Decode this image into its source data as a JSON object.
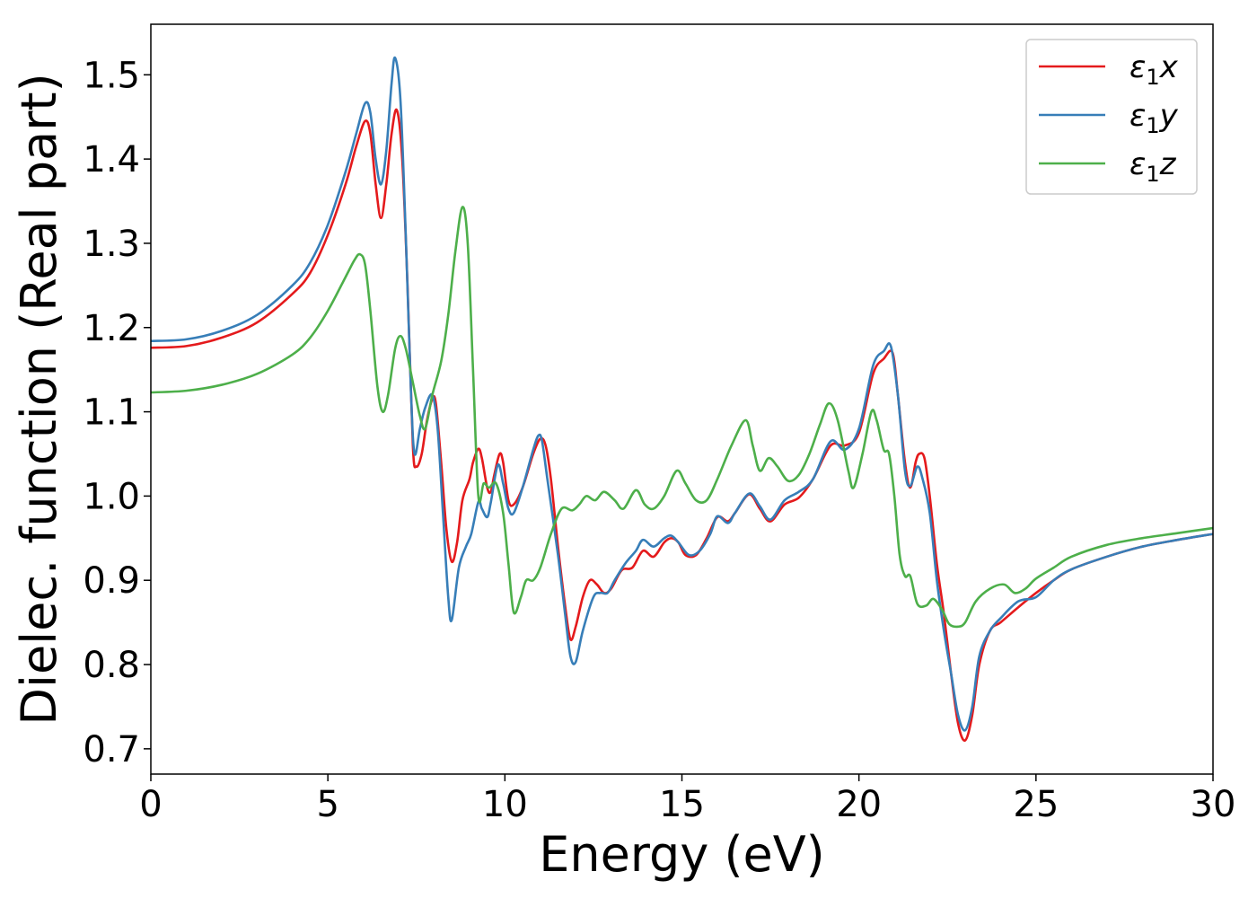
{
  "chart_data": {
    "type": "line",
    "xlabel": "Energy (eV)",
    "ylabel": "Dielec. function (Real part)",
    "xlim": [
      0,
      30
    ],
    "ylim": [
      0.67,
      1.56
    ],
    "xticks": [
      "0",
      "5",
      "10",
      "15",
      "20",
      "25",
      "30"
    ],
    "yticks": [
      "0.7",
      "0.8",
      "0.9",
      "1.0",
      "1.1",
      "1.2",
      "1.3",
      "1.4",
      "1.5"
    ],
    "grid": false,
    "legend_position": "top-right",
    "series": [
      {
        "name": "ε₁x",
        "legend_base": "ε",
        "legend_sub": "1",
        "legend_var": "x",
        "color": "#e41a1c",
        "points": [
          [
            0,
            1.176
          ],
          [
            1,
            1.178
          ],
          [
            2,
            1.188
          ],
          [
            3,
            1.206
          ],
          [
            4,
            1.24
          ],
          [
            4.5,
            1.265
          ],
          [
            5,
            1.31
          ],
          [
            5.5,
            1.37
          ],
          [
            5.8,
            1.415
          ],
          [
            6.05,
            1.445
          ],
          [
            6.2,
            1.43
          ],
          [
            6.35,
            1.37
          ],
          [
            6.5,
            1.33
          ],
          [
            6.65,
            1.37
          ],
          [
            6.8,
            1.43
          ],
          [
            6.95,
            1.458
          ],
          [
            7.1,
            1.4
          ],
          [
            7.25,
            1.25
          ],
          [
            7.4,
            1.06
          ],
          [
            7.5,
            1.035
          ],
          [
            7.65,
            1.05
          ],
          [
            7.8,
            1.09
          ],
          [
            7.95,
            1.115
          ],
          [
            8.05,
            1.11
          ],
          [
            8.2,
            1.04
          ],
          [
            8.35,
            0.96
          ],
          [
            8.5,
            0.922
          ],
          [
            8.65,
            0.945
          ],
          [
            8.8,
            0.995
          ],
          [
            9.0,
            1.02
          ],
          [
            9.1,
            1.04
          ],
          [
            9.25,
            1.056
          ],
          [
            9.35,
            1.045
          ],
          [
            9.5,
            1.01
          ],
          [
            9.6,
            1.005
          ],
          [
            9.7,
            1.025
          ],
          [
            9.85,
            1.05
          ],
          [
            9.95,
            1.04
          ],
          [
            10.1,
            0.995
          ],
          [
            10.25,
            0.99
          ],
          [
            10.5,
            1.01
          ],
          [
            10.8,
            1.05
          ],
          [
            11.0,
            1.068
          ],
          [
            11.15,
            1.06
          ],
          [
            11.3,
            1.02
          ],
          [
            11.5,
            0.94
          ],
          [
            11.7,
            0.87
          ],
          [
            11.85,
            0.83
          ],
          [
            12.0,
            0.845
          ],
          [
            12.2,
            0.88
          ],
          [
            12.4,
            0.9
          ],
          [
            12.6,
            0.895
          ],
          [
            12.8,
            0.885
          ],
          [
            13.0,
            0.89
          ],
          [
            13.3,
            0.912
          ],
          [
            13.6,
            0.915
          ],
          [
            13.9,
            0.935
          ],
          [
            14.2,
            0.928
          ],
          [
            14.5,
            0.945
          ],
          [
            14.7,
            0.95
          ],
          [
            14.9,
            0.945
          ],
          [
            15.1,
            0.93
          ],
          [
            15.4,
            0.93
          ],
          [
            15.7,
            0.95
          ],
          [
            16.0,
            0.975
          ],
          [
            16.3,
            0.97
          ],
          [
            16.5,
            0.98
          ],
          [
            16.9,
            1.002
          ],
          [
            17.2,
            0.985
          ],
          [
            17.5,
            0.97
          ],
          [
            17.9,
            0.99
          ],
          [
            18.3,
            0.998
          ],
          [
            18.7,
            1.02
          ],
          [
            19.2,
            1.06
          ],
          [
            19.6,
            1.06
          ],
          [
            20.0,
            1.075
          ],
          [
            20.4,
            1.145
          ],
          [
            20.7,
            1.163
          ],
          [
            20.95,
            1.17
          ],
          [
            21.1,
            1.12
          ],
          [
            21.3,
            1.04
          ],
          [
            21.45,
            1.01
          ],
          [
            21.6,
            1.04
          ],
          [
            21.7,
            1.05
          ],
          [
            21.85,
            1.045
          ],
          [
            22.0,
            1.0
          ],
          [
            22.2,
            0.92
          ],
          [
            22.4,
            0.86
          ],
          [
            22.6,
            0.79
          ],
          [
            22.8,
            0.73
          ],
          [
            23.0,
            0.71
          ],
          [
            23.2,
            0.74
          ],
          [
            23.4,
            0.8
          ],
          [
            23.7,
            0.84
          ],
          [
            24.0,
            0.85
          ],
          [
            24.5,
            0.868
          ],
          [
            25.0,
            0.885
          ],
          [
            25.5,
            0.9
          ],
          [
            26.0,
            0.913
          ],
          [
            27.0,
            0.928
          ],
          [
            28.0,
            0.94
          ],
          [
            29.0,
            0.948
          ],
          [
            30.0,
            0.955
          ]
        ]
      },
      {
        "name": "ε₁y",
        "legend_base": "ε",
        "legend_sub": "1",
        "legend_var": "y",
        "color": "#377eb8",
        "points": [
          [
            0,
            1.184
          ],
          [
            1,
            1.186
          ],
          [
            2,
            1.196
          ],
          [
            3,
            1.215
          ],
          [
            4,
            1.25
          ],
          [
            4.5,
            1.277
          ],
          [
            5,
            1.322
          ],
          [
            5.5,
            1.385
          ],
          [
            5.8,
            1.43
          ],
          [
            6.05,
            1.466
          ],
          [
            6.2,
            1.455
          ],
          [
            6.35,
            1.4
          ],
          [
            6.5,
            1.37
          ],
          [
            6.65,
            1.41
          ],
          [
            6.8,
            1.49
          ],
          [
            6.9,
            1.52
          ],
          [
            7.05,
            1.47
          ],
          [
            7.2,
            1.31
          ],
          [
            7.35,
            1.12
          ],
          [
            7.45,
            1.05
          ],
          [
            7.6,
            1.08
          ],
          [
            7.75,
            1.105
          ],
          [
            7.95,
            1.12
          ],
          [
            8.1,
            1.08
          ],
          [
            8.25,
            0.98
          ],
          [
            8.4,
            0.88
          ],
          [
            8.5,
            0.853
          ],
          [
            8.7,
            0.915
          ],
          [
            8.9,
            0.94
          ],
          [
            9.05,
            0.955
          ],
          [
            9.25,
            0.993
          ],
          [
            9.35,
            0.985
          ],
          [
            9.5,
            0.975
          ],
          [
            9.6,
            0.992
          ],
          [
            9.8,
            1.037
          ],
          [
            9.95,
            1.015
          ],
          [
            10.1,
            0.985
          ],
          [
            10.25,
            0.98
          ],
          [
            10.5,
            1.01
          ],
          [
            10.8,
            1.055
          ],
          [
            10.95,
            1.072
          ],
          [
            11.05,
            1.065
          ],
          [
            11.2,
            1.02
          ],
          [
            11.5,
            0.93
          ],
          [
            11.7,
            0.86
          ],
          [
            11.85,
            0.81
          ],
          [
            12.0,
            0.803
          ],
          [
            12.2,
            0.84
          ],
          [
            12.5,
            0.88
          ],
          [
            12.7,
            0.885
          ],
          [
            12.9,
            0.885
          ],
          [
            13.1,
            0.9
          ],
          [
            13.4,
            0.92
          ],
          [
            13.7,
            0.935
          ],
          [
            13.9,
            0.948
          ],
          [
            14.2,
            0.94
          ],
          [
            14.5,
            0.95
          ],
          [
            14.7,
            0.953
          ],
          [
            14.9,
            0.945
          ],
          [
            15.2,
            0.93
          ],
          [
            15.5,
            0.935
          ],
          [
            15.8,
            0.955
          ],
          [
            16.0,
            0.976
          ],
          [
            16.3,
            0.968
          ],
          [
            16.5,
            0.98
          ],
          [
            16.9,
            1.003
          ],
          [
            17.2,
            0.988
          ],
          [
            17.5,
            0.972
          ],
          [
            17.9,
            0.995
          ],
          [
            18.3,
            1.005
          ],
          [
            18.7,
            1.02
          ],
          [
            19.2,
            1.065
          ],
          [
            19.6,
            1.055
          ],
          [
            20.0,
            1.08
          ],
          [
            20.4,
            1.155
          ],
          [
            20.7,
            1.172
          ],
          [
            20.9,
            1.178
          ],
          [
            21.1,
            1.12
          ],
          [
            21.3,
            1.03
          ],
          [
            21.45,
            1.012
          ],
          [
            21.65,
            1.035
          ],
          [
            21.8,
            1.02
          ],
          [
            22.0,
            0.98
          ],
          [
            22.2,
            0.9
          ],
          [
            22.4,
            0.84
          ],
          [
            22.6,
            0.79
          ],
          [
            22.8,
            0.74
          ],
          [
            23.0,
            0.722
          ],
          [
            23.2,
            0.75
          ],
          [
            23.4,
            0.81
          ],
          [
            23.7,
            0.84
          ],
          [
            24.0,
            0.855
          ],
          [
            24.5,
            0.875
          ],
          [
            25.0,
            0.88
          ],
          [
            25.5,
            0.9
          ],
          [
            26.0,
            0.913
          ],
          [
            27.0,
            0.928
          ],
          [
            28.0,
            0.94
          ],
          [
            29.0,
            0.948
          ],
          [
            30.0,
            0.955
          ]
        ]
      },
      {
        "name": "ε₁z",
        "legend_base": "ε",
        "legend_sub": "1",
        "legend_var": "z",
        "color": "#4daf4a",
        "points": [
          [
            0,
            1.123
          ],
          [
            1,
            1.125
          ],
          [
            2,
            1.132
          ],
          [
            3,
            1.145
          ],
          [
            4,
            1.168
          ],
          [
            4.5,
            1.188
          ],
          [
            5,
            1.22
          ],
          [
            5.5,
            1.26
          ],
          [
            5.75,
            1.28
          ],
          [
            5.9,
            1.287
          ],
          [
            6.05,
            1.275
          ],
          [
            6.2,
            1.22
          ],
          [
            6.4,
            1.13
          ],
          [
            6.55,
            1.1
          ],
          [
            6.7,
            1.12
          ],
          [
            6.9,
            1.175
          ],
          [
            7.05,
            1.19
          ],
          [
            7.2,
            1.175
          ],
          [
            7.4,
            1.135
          ],
          [
            7.6,
            1.095
          ],
          [
            7.75,
            1.08
          ],
          [
            7.95,
            1.12
          ],
          [
            8.2,
            1.16
          ],
          [
            8.4,
            1.215
          ],
          [
            8.6,
            1.29
          ],
          [
            8.8,
            1.343
          ],
          [
            8.95,
            1.3
          ],
          [
            9.1,
            1.15
          ],
          [
            9.25,
            1.0
          ],
          [
            9.4,
            1.015
          ],
          [
            9.55,
            1.01
          ],
          [
            9.75,
            1.015
          ],
          [
            9.95,
            0.98
          ],
          [
            10.1,
            0.92
          ],
          [
            10.25,
            0.862
          ],
          [
            10.45,
            0.88
          ],
          [
            10.6,
            0.9
          ],
          [
            10.8,
            0.9
          ],
          [
            11.0,
            0.915
          ],
          [
            11.3,
            0.955
          ],
          [
            11.6,
            0.985
          ],
          [
            11.9,
            0.983
          ],
          [
            12.1,
            0.99
          ],
          [
            12.3,
            1.0
          ],
          [
            12.55,
            0.995
          ],
          [
            12.8,
            1.005
          ],
          [
            13.1,
            0.995
          ],
          [
            13.35,
            0.985
          ],
          [
            13.7,
            1.007
          ],
          [
            13.95,
            0.99
          ],
          [
            14.2,
            0.985
          ],
          [
            14.5,
            1.0
          ],
          [
            14.85,
            1.03
          ],
          [
            15.1,
            1.015
          ],
          [
            15.4,
            0.995
          ],
          [
            15.7,
            0.995
          ],
          [
            16.0,
            1.02
          ],
          [
            16.4,
            1.06
          ],
          [
            16.8,
            1.09
          ],
          [
            17.0,
            1.06
          ],
          [
            17.2,
            1.03
          ],
          [
            17.45,
            1.045
          ],
          [
            17.7,
            1.035
          ],
          [
            18.0,
            1.018
          ],
          [
            18.3,
            1.025
          ],
          [
            18.6,
            1.05
          ],
          [
            18.9,
            1.085
          ],
          [
            19.15,
            1.11
          ],
          [
            19.4,
            1.09
          ],
          [
            19.7,
            1.03
          ],
          [
            19.85,
            1.01
          ],
          [
            20.1,
            1.05
          ],
          [
            20.35,
            1.1
          ],
          [
            20.5,
            1.09
          ],
          [
            20.7,
            1.055
          ],
          [
            20.85,
            1.05
          ],
          [
            21.0,
            1.0
          ],
          [
            21.15,
            0.93
          ],
          [
            21.3,
            0.905
          ],
          [
            21.45,
            0.905
          ],
          [
            21.65,
            0.872
          ],
          [
            21.9,
            0.87
          ],
          [
            22.1,
            0.878
          ],
          [
            22.35,
            0.865
          ],
          [
            22.55,
            0.848
          ],
          [
            22.8,
            0.845
          ],
          [
            23.0,
            0.85
          ],
          [
            23.3,
            0.875
          ],
          [
            23.7,
            0.89
          ],
          [
            24.1,
            0.895
          ],
          [
            24.4,
            0.885
          ],
          [
            24.7,
            0.89
          ],
          [
            25.0,
            0.902
          ],
          [
            25.5,
            0.915
          ],
          [
            26.0,
            0.928
          ],
          [
            27.0,
            0.942
          ],
          [
            28.0,
            0.95
          ],
          [
            29.0,
            0.956
          ],
          [
            30.0,
            0.962
          ]
        ]
      }
    ]
  }
}
